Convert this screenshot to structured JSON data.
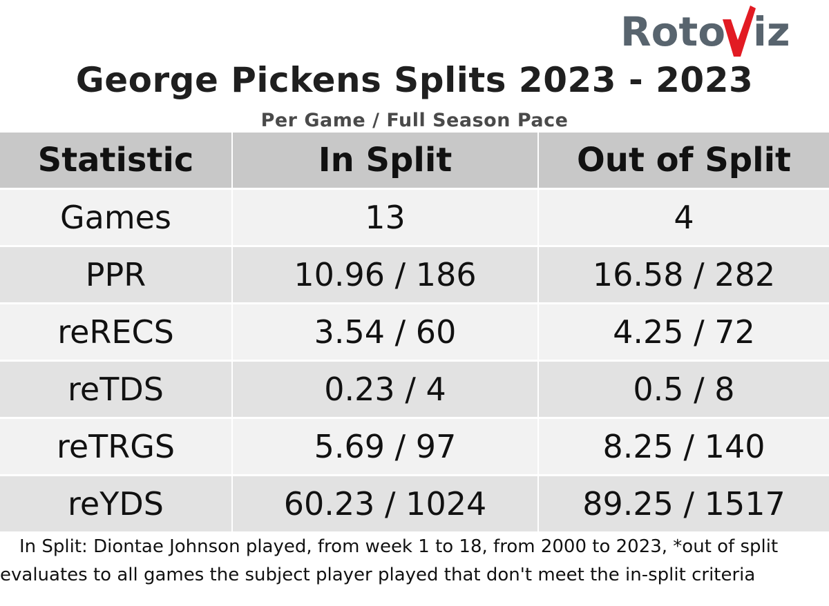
{
  "logo": {
    "text_left": "Roto",
    "text_right": "iz",
    "brand_gray": "#58646e",
    "brand_red": "#e21b23"
  },
  "title": "George Pickens Splits 2023 - 2023",
  "subtitle": "Per Game / Full Season Pace",
  "table": {
    "headers": [
      "Statistic",
      "In Split",
      "Out of Split"
    ],
    "rows": [
      [
        "Games",
        "13",
        "4"
      ],
      [
        "PPR",
        "10.96 / 186",
        "16.58 / 282"
      ],
      [
        "reRECS",
        "3.54 / 60",
        "4.25 / 72"
      ],
      [
        "reTDS",
        "0.23 / 4",
        "0.5 / 8"
      ],
      [
        "reTRGS",
        "5.69 / 97",
        "8.25 / 140"
      ],
      [
        "reYDS",
        "60.23 / 1024",
        "89.25 / 1517"
      ]
    ],
    "header_bg": "#c8c8c8",
    "row_bg_light": "#f2f2f2",
    "row_bg_dark": "#e2e2e2"
  },
  "footnote": "In Split: Diontae Johnson played, from week 1 to 18, from 2000 to 2023,  *out of split evaluates to all games the subject player played that don't meet the in-split criteria"
}
